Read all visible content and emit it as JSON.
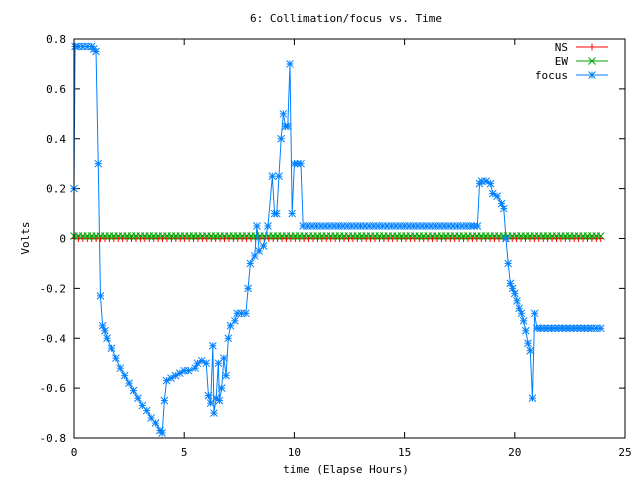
{
  "chart_data": {
    "type": "line",
    "title": "6: Collimation/focus vs. Time",
    "xlabel": "time (Elapse Hours)",
    "ylabel": "Volts",
    "xlim": [
      0,
      25
    ],
    "ylim": [
      -0.8,
      0.8
    ],
    "xticks": [
      0,
      5,
      10,
      15,
      20,
      25
    ],
    "yticks": [
      -0.8,
      -0.6,
      -0.4,
      -0.2,
      0,
      0.2,
      0.4,
      0.6,
      0.8
    ],
    "xtick_labels": [
      "0",
      "5",
      "10",
      "15",
      "20",
      "25"
    ],
    "ytick_labels": [
      "-0.8",
      "-0.6",
      "-0.4",
      "-0.2",
      "0",
      "0.2",
      "0.4",
      "0.6",
      "0.8"
    ],
    "legend_position": "top-right",
    "series": [
      {
        "name": "NS",
        "color": "#ff0000",
        "marker": "plus",
        "points": [
          [
            0,
            0
          ],
          [
            23.9,
            0
          ]
        ]
      },
      {
        "name": "EW",
        "color": "#00a000",
        "marker": "x",
        "points": [
          [
            0,
            0.01
          ],
          [
            23.9,
            0.01
          ]
        ]
      },
      {
        "name": "focus",
        "color": "#0080ff",
        "marker": "star",
        "points": [
          [
            0,
            0.2
          ],
          [
            0.05,
            0.77
          ],
          [
            0.2,
            0.77
          ],
          [
            0.4,
            0.77
          ],
          [
            0.6,
            0.77
          ],
          [
            0.8,
            0.77
          ],
          [
            0.9,
            0.76
          ],
          [
            1.0,
            0.75
          ],
          [
            1.1,
            0.3
          ],
          [
            1.2,
            -0.23
          ],
          [
            1.3,
            -0.35
          ],
          [
            1.4,
            -0.37
          ],
          [
            1.5,
            -0.4
          ],
          [
            1.7,
            -0.44
          ],
          [
            1.9,
            -0.48
          ],
          [
            2.1,
            -0.52
          ],
          [
            2.3,
            -0.55
          ],
          [
            2.5,
            -0.58
          ],
          [
            2.7,
            -0.61
          ],
          [
            2.9,
            -0.64
          ],
          [
            3.1,
            -0.67
          ],
          [
            3.3,
            -0.69
          ],
          [
            3.5,
            -0.72
          ],
          [
            3.7,
            -0.74
          ],
          [
            3.9,
            -0.77
          ],
          [
            4.0,
            -0.78
          ],
          [
            4.1,
            -0.65
          ],
          [
            4.2,
            -0.57
          ],
          [
            4.4,
            -0.56
          ],
          [
            4.6,
            -0.55
          ],
          [
            4.8,
            -0.54
          ],
          [
            5.0,
            -0.53
          ],
          [
            5.2,
            -0.53
          ],
          [
            5.5,
            -0.52
          ],
          [
            5.6,
            -0.5
          ],
          [
            5.8,
            -0.49
          ],
          [
            6.0,
            -0.5
          ],
          [
            6.1,
            -0.63
          ],
          [
            6.2,
            -0.66
          ],
          [
            6.3,
            -0.43
          ],
          [
            6.35,
            -0.7
          ],
          [
            6.45,
            -0.64
          ],
          [
            6.55,
            -0.5
          ],
          [
            6.6,
            -0.65
          ],
          [
            6.7,
            -0.6
          ],
          [
            6.8,
            -0.48
          ],
          [
            6.9,
            -0.55
          ],
          [
            7.0,
            -0.4
          ],
          [
            7.1,
            -0.35
          ],
          [
            7.3,
            -0.33
          ],
          [
            7.4,
            -0.3
          ],
          [
            7.8,
            -0.3
          ],
          [
            7.9,
            -0.2
          ],
          [
            8.0,
            -0.1
          ],
          [
            8.2,
            -0.07
          ],
          [
            8.3,
            0.05
          ],
          [
            8.4,
            -0.05
          ],
          [
            8.6,
            -0.03
          ],
          [
            8.8,
            0.05
          ],
          [
            9.0,
            0.25
          ],
          [
            9.1,
            0.1
          ],
          [
            9.2,
            0.1
          ],
          [
            9.3,
            0.25
          ],
          [
            9.4,
            0.4
          ],
          [
            9.5,
            0.5
          ],
          [
            9.6,
            0.45
          ],
          [
            9.7,
            0.45
          ],
          [
            9.8,
            0.7
          ],
          [
            9.9,
            0.1
          ],
          [
            10.0,
            0.3
          ],
          [
            10.3,
            0.3
          ],
          [
            10.4,
            0.05
          ],
          [
            11.0,
            0.05
          ],
          [
            12.0,
            0.05
          ],
          [
            13.0,
            0.05
          ],
          [
            14.0,
            0.05
          ],
          [
            15.0,
            0.05
          ],
          [
            16.0,
            0.05
          ],
          [
            17.0,
            0.05
          ],
          [
            18.0,
            0.05
          ],
          [
            18.3,
            0.05
          ],
          [
            18.4,
            0.22
          ],
          [
            18.5,
            0.23
          ],
          [
            18.7,
            0.23
          ],
          [
            18.9,
            0.22
          ],
          [
            19.0,
            0.18
          ],
          [
            19.2,
            0.17
          ],
          [
            19.4,
            0.14
          ],
          [
            19.5,
            0.12
          ],
          [
            19.6,
            0.0
          ],
          [
            19.7,
            -0.1
          ],
          [
            19.8,
            -0.18
          ],
          [
            19.9,
            -0.2
          ],
          [
            20.0,
            -0.22
          ],
          [
            20.1,
            -0.25
          ],
          [
            20.2,
            -0.28
          ],
          [
            20.3,
            -0.3
          ],
          [
            20.4,
            -0.33
          ],
          [
            20.5,
            -0.37
          ],
          [
            20.6,
            -0.42
          ],
          [
            20.7,
            -0.45
          ],
          [
            20.8,
            -0.64
          ],
          [
            20.9,
            -0.3
          ],
          [
            21.0,
            -0.36
          ],
          [
            21.5,
            -0.36
          ],
          [
            22.0,
            -0.36
          ],
          [
            22.5,
            -0.36
          ],
          [
            23.0,
            -0.36
          ],
          [
            23.5,
            -0.36
          ],
          [
            23.9,
            -0.36
          ]
        ]
      }
    ]
  }
}
